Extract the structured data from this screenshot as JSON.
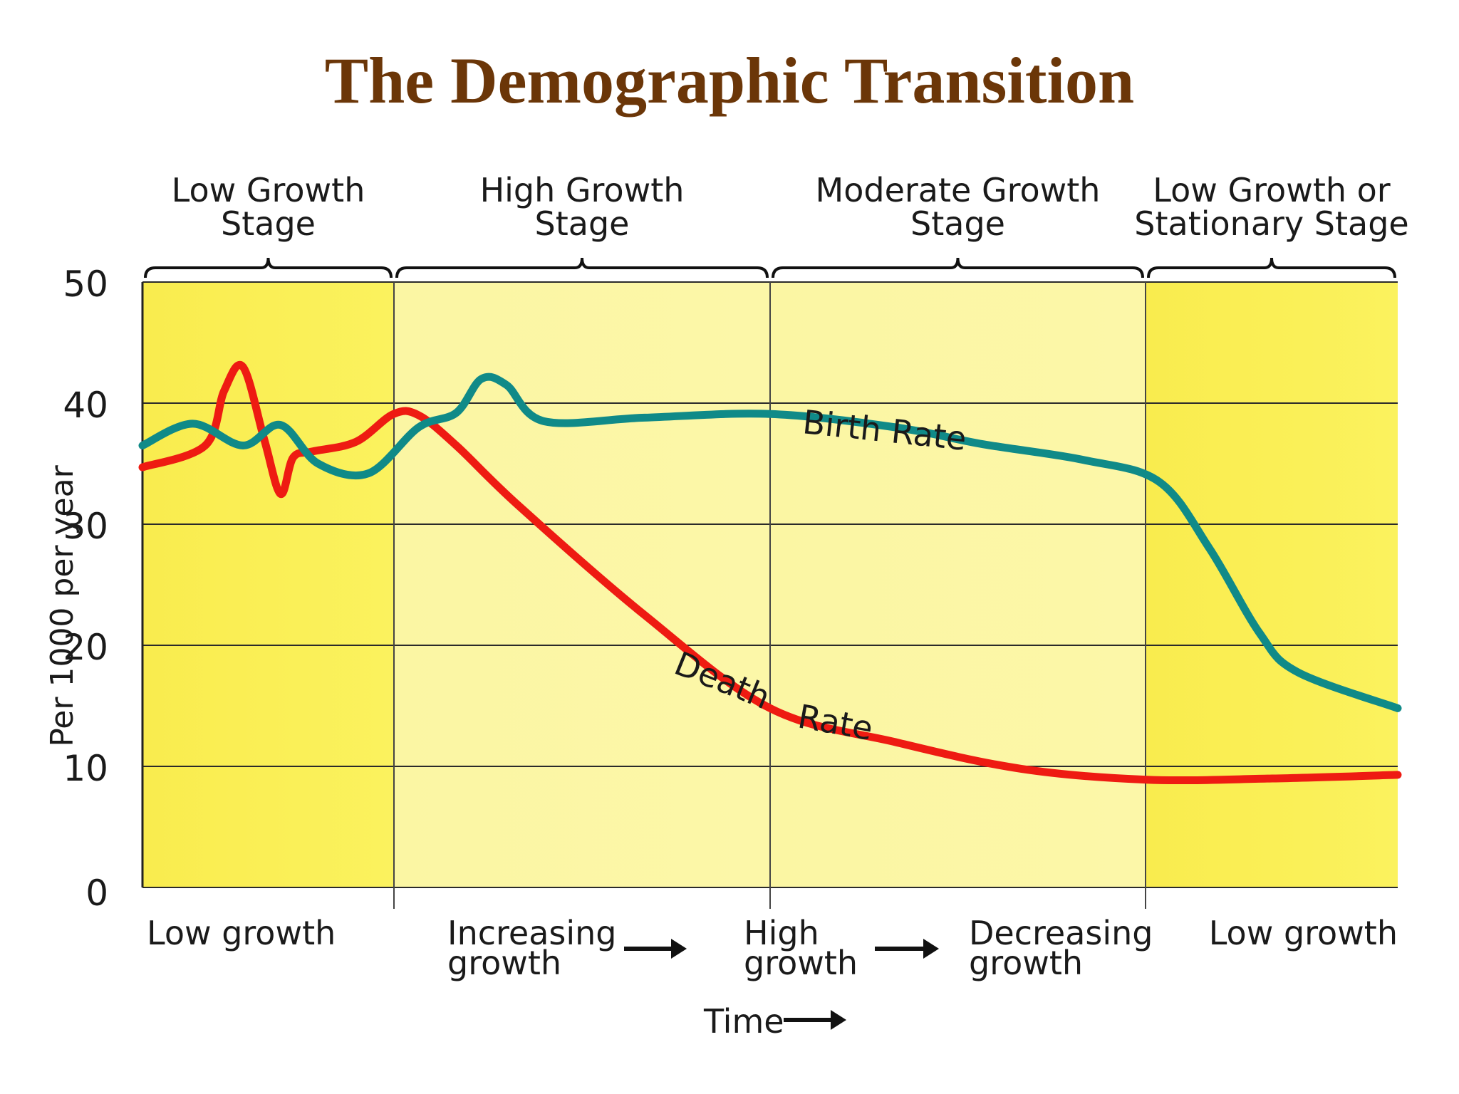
{
  "title": "The Demographic Transition",
  "chart_data": {
    "type": "line",
    "title": "The Demographic Transition",
    "xlabel": "Time",
    "ylabel": "Per 1000 per year",
    "ylim": [
      0,
      50
    ],
    "yticks": [
      0,
      10,
      20,
      30,
      40,
      50
    ],
    "grid": true,
    "stages": [
      {
        "label_line1": "Low Growth",
        "label_line2": "Stage",
        "highlight": true
      },
      {
        "label_line1": "High Growth",
        "label_line2": "Stage",
        "highlight": false
      },
      {
        "label_line1": "Moderate Growth",
        "label_line2": "Stage",
        "highlight": false
      },
      {
        "label_line1": "Low Growth or",
        "label_line2": "Stationary Stage",
        "highlight": true
      }
    ],
    "growth_labels": [
      {
        "line1": "Low growth",
        "line2": ""
      },
      {
        "line1": "Increasing",
        "line2": "growth"
      },
      {
        "line1": "High",
        "line2": "growth"
      },
      {
        "line1": "Decreasing",
        "line2": "growth"
      },
      {
        "line1": "Low growth",
        "line2": ""
      }
    ],
    "series": [
      {
        "name": "Birth Rate",
        "color": "#108a88",
        "points": [
          [
            0,
            36.5
          ],
          [
            0.04,
            38.3
          ],
          [
            0.08,
            36.5
          ],
          [
            0.11,
            38.2
          ],
          [
            0.14,
            35
          ],
          [
            0.18,
            34.2
          ],
          [
            0.22,
            38
          ],
          [
            0.25,
            39.2
          ],
          [
            0.27,
            42
          ],
          [
            0.29,
            41.5
          ],
          [
            0.32,
            38.5
          ],
          [
            0.4,
            38.8
          ],
          [
            0.5,
            39.1
          ],
          [
            0.6,
            38
          ],
          [
            0.67,
            36.6
          ],
          [
            0.75,
            35.3
          ],
          [
            0.81,
            33.5
          ],
          [
            0.85,
            28
          ],
          [
            0.89,
            21
          ],
          [
            0.92,
            17.8
          ],
          [
            1.0,
            14.8
          ]
        ]
      },
      {
        "name": "Death Rate",
        "color": "#ee1b12",
        "points": [
          [
            0,
            34.7
          ],
          [
            0.05,
            36.5
          ],
          [
            0.065,
            41
          ],
          [
            0.08,
            43
          ],
          [
            0.097,
            37
          ],
          [
            0.11,
            32.5
          ],
          [
            0.12,
            35.5
          ],
          [
            0.135,
            36
          ],
          [
            0.17,
            36.8
          ],
          [
            0.2,
            39.1
          ],
          [
            0.22,
            39
          ],
          [
            0.25,
            36.5
          ],
          [
            0.3,
            31.5
          ],
          [
            0.4,
            22.5
          ],
          [
            0.5,
            14.8
          ],
          [
            0.6,
            12
          ],
          [
            0.7,
            9.8
          ],
          [
            0.8,
            8.9
          ],
          [
            0.9,
            9
          ],
          [
            1.0,
            9.3
          ]
        ]
      }
    ],
    "annotations": {
      "birth_rate": "Birth Rate",
      "death_word": "Death",
      "rate_word": "Rate",
      "time_label": "Time"
    }
  }
}
